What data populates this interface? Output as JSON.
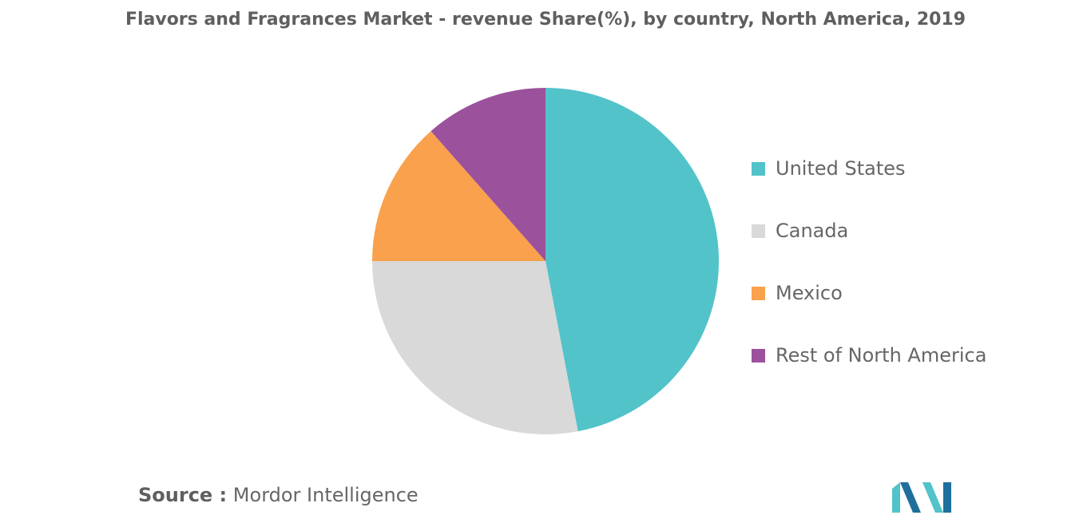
{
  "chart_data": {
    "type": "pie",
    "title": "Flavors and Fragrances Market - revenue Share(%), by country, North America, 2019",
    "slices": [
      {
        "label": "United States",
        "value": 47,
        "color": "#52c3c9"
      },
      {
        "label": "Canada",
        "value": 28,
        "color": "#d9d9d9"
      },
      {
        "label": "Mexico",
        "value": 13.5,
        "color": "#f9a14c"
      },
      {
        "label": "Rest of North America",
        "value": 11.5,
        "color": "#9c519c"
      }
    ],
    "legend_position": "right"
  },
  "source": {
    "label": "Source :",
    "text": "Mordor Intelligence"
  },
  "logo": {
    "icon": "mordor-intelligence-logo",
    "colors": [
      "#52c3c9",
      "#1e6f9c"
    ]
  }
}
